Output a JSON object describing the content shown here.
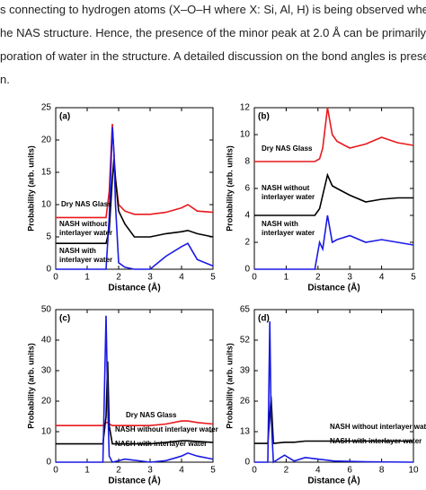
{
  "text_lines": [
    "s connecting to hydrogen atoms (X–O–H where X: Si, Al, H) is being observed when water is",
    "he NAS structure. Hence, the presence of the minor peak at 2.0 Å can be primarily attribu",
    "poration of water in the structure. A detailed discussion on the bond angles is presented",
    "n."
  ],
  "chart_data": [
    {
      "type": "line",
      "panel_label": "(a)",
      "y_label": "Probability (arb. units)",
      "x_label": "Distance (Å)",
      "xlim": [
        0,
        5
      ],
      "xticks": [
        0,
        1,
        2,
        3,
        4,
        5
      ],
      "ylim": [
        0,
        25
      ],
      "yticks": [
        0,
        5,
        10,
        15,
        20,
        25
      ],
      "labels": [
        "Dry NAS Glass",
        "NASH without",
        "interlayer water",
        "NASH with",
        "interlayer water"
      ],
      "x": [
        0,
        1.6,
        1.7,
        1.8,
        1.85,
        1.9,
        2.0,
        2.2,
        2.5,
        3.0,
        3.5,
        4.0,
        4.2,
        4.5,
        5.0
      ],
      "series": [
        {
          "color": "#e8191d",
          "values": [
            8,
            8,
            12,
            22.5,
            18,
            14,
            10,
            9,
            8.5,
            8.5,
            8.8,
            9.5,
            10,
            9,
            8.8
          ]
        },
        {
          "color": "#000000",
          "values": [
            4,
            4,
            6,
            14,
            17,
            14,
            9,
            7,
            5,
            5,
            5.5,
            5.8,
            6,
            5.5,
            5
          ]
        },
        {
          "color": "#1a1ae6",
          "values": [
            0,
            0,
            8,
            22,
            18,
            10,
            1,
            0.3,
            0,
            0,
            2,
            3.5,
            4,
            1.5,
            0.5
          ]
        }
      ]
    },
    {
      "type": "line",
      "panel_label": "(b)",
      "y_label": "Probability (arb. units)",
      "x_label": "Distance (Å)",
      "xlim": [
        0,
        5
      ],
      "xticks": [
        0,
        1,
        2,
        3,
        4,
        5
      ],
      "ylim": [
        0,
        12
      ],
      "yticks": [
        0,
        2,
        4,
        6,
        8,
        10,
        12
      ],
      "labels": [
        "Dry NAS Glass",
        "NASH without",
        "interlayer water",
        "NASH with",
        "interlayer water"
      ],
      "x": [
        0,
        1.9,
        2.05,
        2.15,
        2.3,
        2.45,
        2.6,
        3.0,
        3.5,
        4.0,
        4.5,
        5.0
      ],
      "series": [
        {
          "color": "#e8191d",
          "values": [
            8,
            8,
            8.2,
            9,
            12,
            10,
            9.5,
            9,
            9.3,
            9.8,
            9.4,
            9.2
          ]
        },
        {
          "color": "#000000",
          "values": [
            4,
            4,
            4.5,
            5.5,
            7,
            6.2,
            6,
            5.5,
            5,
            5.2,
            5.3,
            5.3
          ]
        },
        {
          "color": "#1a1ae6",
          "values": [
            0,
            0,
            2,
            1.5,
            4,
            2,
            2.2,
            2.5,
            2,
            2.2,
            2,
            1.8
          ]
        }
      ]
    },
    {
      "type": "line",
      "panel_label": "(c)",
      "y_label": "Probability (arb. units)",
      "x_label": "Distance (Å)",
      "xlim": [
        0,
        5
      ],
      "xticks": [
        0,
        1,
        2,
        3,
        4,
        5
      ],
      "ylim": [
        0,
        50
      ],
      "yticks": [
        0,
        10,
        20,
        30,
        40,
        50
      ],
      "labels": [
        "Dry NAS Glass",
        "NASH without interlayer water",
        "NASH with interlayer water"
      ],
      "x": [
        0,
        1.5,
        1.6,
        1.65,
        1.7,
        1.8,
        2.2,
        3.0,
        3.5,
        4.0,
        4.2,
        4.5,
        5.0
      ],
      "series": [
        {
          "color": "#e8191d",
          "values": [
            12,
            12,
            13,
            13,
            12.5,
            12,
            12,
            12,
            12.5,
            13.5,
            13.5,
            13,
            12.5
          ]
        },
        {
          "color": "#000000",
          "values": [
            6,
            6,
            15,
            33,
            12,
            6,
            6,
            6,
            6.5,
            7,
            7,
            6.8,
            6.5
          ]
        },
        {
          "color": "#1a1ae6",
          "values": [
            0,
            0,
            48,
            20,
            2,
            0,
            1,
            0,
            0.5,
            2,
            3,
            2,
            1
          ]
        }
      ]
    },
    {
      "type": "line",
      "panel_label": "(d)",
      "y_label": "Probability (arb. units)",
      "x_label": "Distance (Å)",
      "xlim": [
        0,
        10
      ],
      "xticks": [
        0,
        2,
        4,
        6,
        8,
        10
      ],
      "ylim": [
        0,
        65
      ],
      "yticks": [
        0,
        13,
        26,
        39,
        52,
        65
      ],
      "labels": [
        "NASH without interlayer water",
        "NASH with interlayer water"
      ],
      "x": [
        0,
        0.85,
        0.97,
        1.05,
        1.2,
        1.9,
        2.5,
        3.2,
        5,
        7,
        10
      ],
      "series": [
        {
          "color": "#000000",
          "values": [
            8,
            8,
            20,
            28,
            8,
            8.5,
            8.5,
            9,
            9,
            9,
            9
          ]
        },
        {
          "color": "#1a1ae6",
          "values": [
            0,
            0,
            60,
            20,
            0,
            3,
            0.5,
            2,
            0.5,
            0.2,
            0
          ]
        }
      ]
    }
  ]
}
